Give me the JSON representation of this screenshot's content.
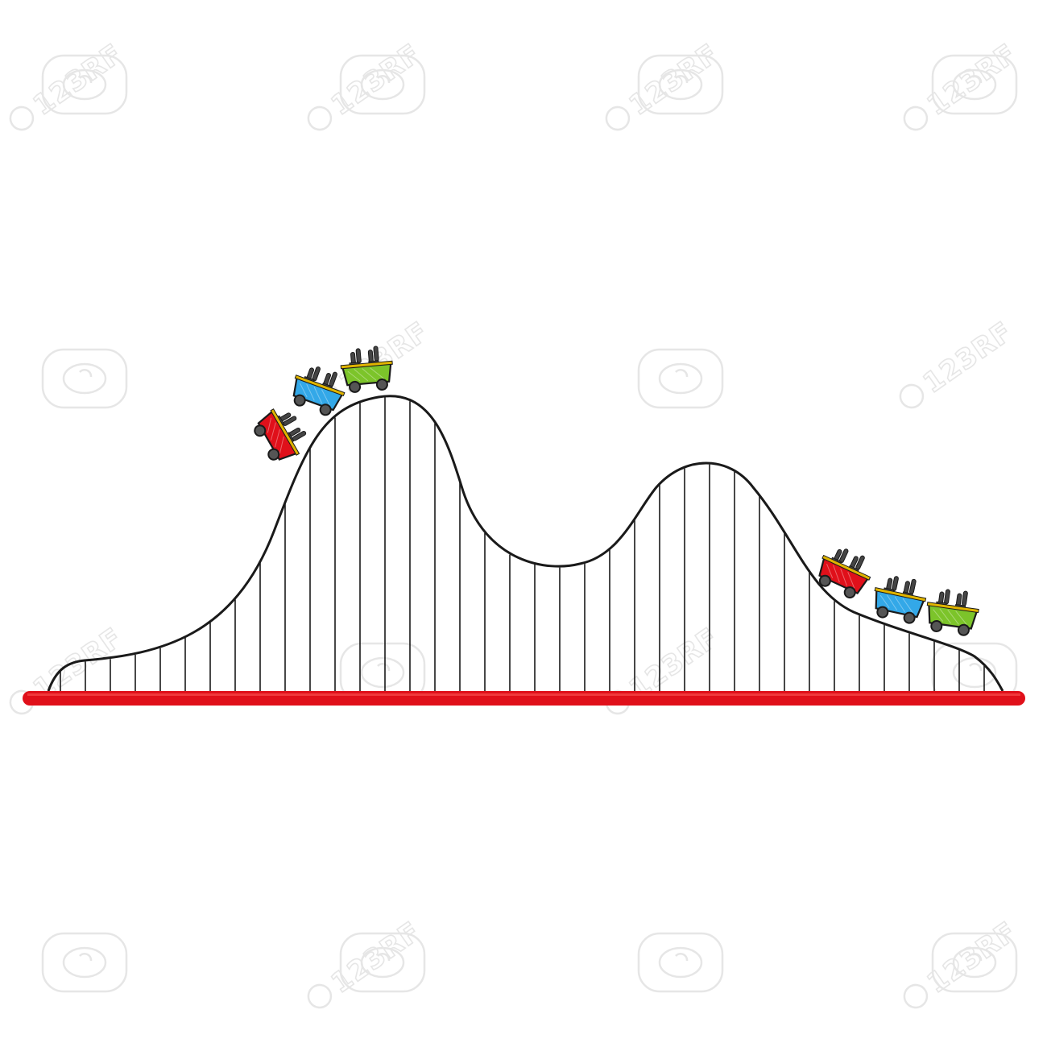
{
  "scene": {
    "subject": "roller-coaster-icon",
    "track_color": "#1a1a1a",
    "ground_rail_color": "#e0101a",
    "car_colors": [
      "#e0101a",
      "#33a8e8",
      "#7cc42a"
    ],
    "car_trim_color": "#e0b400",
    "wheel_color": "#555555",
    "rider_color": "#444444"
  },
  "watermark": {
    "text": "123RF",
    "color": "#e6e6e6"
  }
}
